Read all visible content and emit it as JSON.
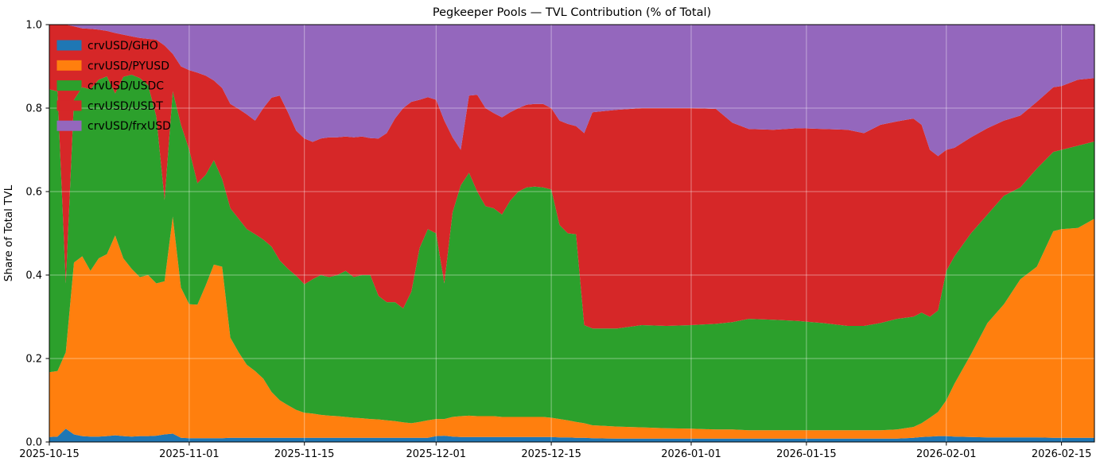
{
  "chart_data": {
    "type": "area",
    "stacked": true,
    "normalized": true,
    "title": "Pegkeeper Pools — TVL Contribution (% of Total)",
    "xlabel": "",
    "ylabel": "Share of Total TVL",
    "ylim": [
      0.0,
      1.0
    ],
    "grid": true,
    "legend_position": "upper-left",
    "legend_frame": false,
    "yticks": [
      {
        "value": 0.0,
        "label": "0.0"
      },
      {
        "value": 0.2,
        "label": "0.2"
      },
      {
        "value": 0.4,
        "label": "0.4"
      },
      {
        "value": 0.6,
        "label": "0.6"
      },
      {
        "value": 0.8,
        "label": "0.8"
      },
      {
        "value": 1.0,
        "label": "1.0"
      }
    ],
    "xticks": [
      "2025-10-15",
      "2025-11-01",
      "2025-11-15",
      "2025-12-01",
      "2025-12-15",
      "2026-01-01",
      "2026-01-15",
      "2026-02-01",
      "2026-02-15"
    ],
    "x": [
      "2025-10-15",
      "2025-10-16",
      "2025-10-17",
      "2025-10-18",
      "2025-10-19",
      "2025-10-20",
      "2025-10-21",
      "2025-10-22",
      "2025-10-23",
      "2025-10-24",
      "2025-10-25",
      "2025-10-26",
      "2025-10-27",
      "2025-10-28",
      "2025-10-29",
      "2025-10-30",
      "2025-10-31",
      "2025-11-01",
      "2025-11-02",
      "2025-11-03",
      "2025-11-04",
      "2025-11-05",
      "2025-11-06",
      "2025-11-07",
      "2025-11-08",
      "2025-11-09",
      "2025-11-10",
      "2025-11-11",
      "2025-11-12",
      "2025-11-13",
      "2025-11-14",
      "2025-11-15",
      "2025-11-16",
      "2025-11-17",
      "2025-11-18",
      "2025-11-19",
      "2025-11-20",
      "2025-11-21",
      "2025-11-22",
      "2025-11-23",
      "2025-11-24",
      "2025-11-25",
      "2025-11-26",
      "2025-11-27",
      "2025-11-28",
      "2025-11-29",
      "2025-11-30",
      "2025-12-01",
      "2025-12-02",
      "2025-12-03",
      "2025-12-04",
      "2025-12-05",
      "2025-12-06",
      "2025-12-07",
      "2025-12-08",
      "2025-12-09",
      "2025-12-10",
      "2025-12-11",
      "2025-12-12",
      "2025-12-13",
      "2025-12-14",
      "2025-12-15",
      "2025-12-16",
      "2025-12-17",
      "2025-12-18",
      "2025-12-19",
      "2025-12-20",
      "2025-12-23",
      "2025-12-26",
      "2025-12-29",
      "2026-01-01",
      "2026-01-04",
      "2026-01-06",
      "2026-01-08",
      "2026-01-11",
      "2026-01-14",
      "2026-01-17",
      "2026-01-20",
      "2026-01-22",
      "2026-01-24",
      "2026-01-26",
      "2026-01-28",
      "2026-01-29",
      "2026-01-30",
      "2026-01-31",
      "2026-02-01",
      "2026-02-02",
      "2026-02-04",
      "2026-02-06",
      "2026-02-08",
      "2026-02-10",
      "2026-02-12",
      "2026-02-14",
      "2026-02-15",
      "2026-02-17",
      "2026-02-19"
    ],
    "series": [
      {
        "name": "crvUSD/GHO",
        "color": "#1f77b4",
        "values": [
          0.012,
          0.013,
          0.032,
          0.018,
          0.014,
          0.013,
          0.013,
          0.014,
          0.016,
          0.014,
          0.013,
          0.014,
          0.014,
          0.015,
          0.018,
          0.02,
          0.01,
          0.009,
          0.009,
          0.009,
          0.009,
          0.009,
          0.01,
          0.01,
          0.01,
          0.01,
          0.01,
          0.01,
          0.01,
          0.01,
          0.01,
          0.01,
          0.01,
          0.01,
          0.01,
          0.01,
          0.01,
          0.01,
          0.01,
          0.01,
          0.01,
          0.01,
          0.01,
          0.01,
          0.01,
          0.01,
          0.01,
          0.014,
          0.015,
          0.013,
          0.012,
          0.012,
          0.012,
          0.012,
          0.012,
          0.012,
          0.012,
          0.012,
          0.012,
          0.012,
          0.012,
          0.012,
          0.011,
          0.011,
          0.01,
          0.01,
          0.009,
          0.008,
          0.008,
          0.008,
          0.008,
          0.008,
          0.008,
          0.008,
          0.008,
          0.008,
          0.008,
          0.008,
          0.008,
          0.008,
          0.008,
          0.01,
          0.012,
          0.013,
          0.014,
          0.014,
          0.013,
          0.012,
          0.011,
          0.011,
          0.011,
          0.011,
          0.01,
          0.01,
          0.01,
          0.01
        ]
      },
      {
        "name": "crvUSD/PYUSD",
        "color": "#ff7f0e",
        "values": [
          0.155,
          0.157,
          0.183,
          0.412,
          0.431,
          0.397,
          0.427,
          0.436,
          0.479,
          0.426,
          0.402,
          0.381,
          0.386,
          0.365,
          0.367,
          0.52,
          0.36,
          0.321,
          0.32,
          0.366,
          0.416,
          0.411,
          0.24,
          0.205,
          0.175,
          0.16,
          0.142,
          0.11,
          0.09,
          0.078,
          0.067,
          0.06,
          0.058,
          0.055,
          0.053,
          0.052,
          0.05,
          0.048,
          0.047,
          0.045,
          0.044,
          0.042,
          0.04,
          0.037,
          0.035,
          0.038,
          0.042,
          0.041,
          0.04,
          0.047,
          0.05,
          0.051,
          0.05,
          0.05,
          0.05,
          0.048,
          0.048,
          0.048,
          0.048,
          0.048,
          0.048,
          0.046,
          0.044,
          0.041,
          0.038,
          0.035,
          0.031,
          0.029,
          0.027,
          0.025,
          0.024,
          0.022,
          0.022,
          0.02,
          0.02,
          0.02,
          0.02,
          0.02,
          0.02,
          0.02,
          0.022,
          0.026,
          0.033,
          0.045,
          0.058,
          0.086,
          0.127,
          0.198,
          0.274,
          0.319,
          0.379,
          0.409,
          0.495,
          0.5,
          0.503,
          0.525
        ]
      },
      {
        "name": "crvUSD/USDC",
        "color": "#2ca02c",
        "values": [
          0.678,
          0.67,
          0.165,
          0.39,
          0.405,
          0.435,
          0.428,
          0.426,
          0.34,
          0.435,
          0.465,
          0.477,
          0.455,
          0.4,
          0.195,
          0.3,
          0.39,
          0.37,
          0.291,
          0.265,
          0.25,
          0.21,
          0.31,
          0.32,
          0.325,
          0.328,
          0.333,
          0.348,
          0.335,
          0.327,
          0.321,
          0.308,
          0.322,
          0.335,
          0.332,
          0.338,
          0.35,
          0.337,
          0.343,
          0.345,
          0.296,
          0.283,
          0.285,
          0.273,
          0.315,
          0.417,
          0.458,
          0.445,
          0.325,
          0.49,
          0.553,
          0.582,
          0.538,
          0.503,
          0.498,
          0.485,
          0.518,
          0.54,
          0.55,
          0.552,
          0.55,
          0.547,
          0.465,
          0.448,
          0.45,
          0.235,
          0.232,
          0.235,
          0.245,
          0.245,
          0.248,
          0.253,
          0.257,
          0.267,
          0.265,
          0.262,
          0.257,
          0.25,
          0.25,
          0.257,
          0.265,
          0.264,
          0.265,
          0.242,
          0.243,
          0.31,
          0.305,
          0.29,
          0.26,
          0.26,
          0.22,
          0.235,
          0.19,
          0.19,
          0.197,
          0.185
        ]
      },
      {
        "name": "crvUSD/USDT",
        "color": "#d62728",
        "values": [
          0.155,
          0.16,
          0.62,
          0.176,
          0.141,
          0.145,
          0.12,
          0.109,
          0.145,
          0.101,
          0.092,
          0.096,
          0.111,
          0.184,
          0.37,
          0.09,
          0.14,
          0.191,
          0.265,
          0.238,
          0.191,
          0.218,
          0.25,
          0.263,
          0.275,
          0.272,
          0.315,
          0.357,
          0.395,
          0.375,
          0.348,
          0.349,
          0.329,
          0.327,
          0.335,
          0.33,
          0.322,
          0.335,
          0.332,
          0.328,
          0.377,
          0.405,
          0.44,
          0.48,
          0.455,
          0.355,
          0.316,
          0.32,
          0.39,
          0.18,
          0.085,
          0.185,
          0.232,
          0.235,
          0.228,
          0.233,
          0.212,
          0.2,
          0.198,
          0.198,
          0.2,
          0.195,
          0.25,
          0.262,
          0.259,
          0.46,
          0.518,
          0.524,
          0.52,
          0.522,
          0.52,
          0.515,
          0.478,
          0.455,
          0.455,
          0.462,
          0.465,
          0.47,
          0.462,
          0.475,
          0.473,
          0.475,
          0.45,
          0.4,
          0.37,
          0.29,
          0.26,
          0.23,
          0.207,
          0.18,
          0.172,
          0.16,
          0.155,
          0.153,
          0.158,
          0.152
        ]
      },
      {
        "name": "crvUSD/frxUSD",
        "color": "#9467bd",
        "values": [
          0.0,
          0.0,
          0.0,
          0.004,
          0.009,
          0.01,
          0.012,
          0.015,
          0.02,
          0.024,
          0.028,
          0.032,
          0.034,
          0.036,
          0.05,
          0.07,
          0.1,
          0.109,
          0.115,
          0.122,
          0.134,
          0.152,
          0.19,
          0.202,
          0.215,
          0.23,
          0.2,
          0.175,
          0.17,
          0.21,
          0.254,
          0.273,
          0.281,
          0.273,
          0.27,
          0.27,
          0.268,
          0.27,
          0.268,
          0.272,
          0.273,
          0.26,
          0.225,
          0.2,
          0.185,
          0.18,
          0.174,
          0.18,
          0.23,
          0.27,
          0.3,
          0.17,
          0.168,
          0.2,
          0.212,
          0.222,
          0.21,
          0.2,
          0.192,
          0.19,
          0.19,
          0.2,
          0.23,
          0.238,
          0.243,
          0.26,
          0.21,
          0.204,
          0.2,
          0.2,
          0.2,
          0.202,
          0.235,
          0.25,
          0.252,
          0.248,
          0.25,
          0.252,
          0.26,
          0.24,
          0.232,
          0.225,
          0.24,
          0.3,
          0.315,
          0.3,
          0.295,
          0.27,
          0.248,
          0.23,
          0.218,
          0.185,
          0.15,
          0.147,
          0.132,
          0.128
        ]
      }
    ]
  }
}
